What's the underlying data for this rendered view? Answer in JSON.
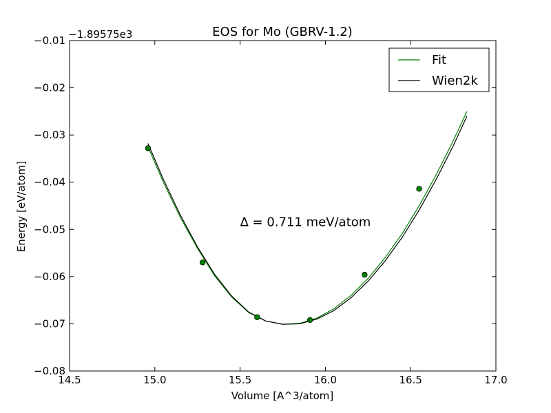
{
  "chart_data": {
    "type": "line",
    "title": "EOS for Mo (GBRV-1.2)",
    "xlabel": "Volume [A^3/atom]",
    "ylabel": "Energy [eV/atom]",
    "offset_text": "−1.89575e3",
    "xlim": [
      14.5,
      17.0
    ],
    "ylim": [
      -0.08,
      -0.01
    ],
    "xticks": [
      14.5,
      15.0,
      15.5,
      16.0,
      16.5,
      17.0
    ],
    "xtick_labels": [
      "14.5",
      "15.0",
      "15.5",
      "16.0",
      "16.5",
      "17.0"
    ],
    "yticks": [
      -0.08,
      -0.07,
      -0.06,
      -0.05,
      -0.04,
      -0.03,
      -0.02,
      -0.01
    ],
    "ytick_labels": [
      "−0.08",
      "−0.07",
      "−0.06",
      "−0.05",
      "−0.04",
      "−0.03",
      "−0.02",
      "−0.01"
    ],
    "grid": false,
    "legend_position": "top-right",
    "annotation": {
      "text": "Δ = 0.711 meV/atom",
      "x": 15.5,
      "y": -0.0493
    },
    "series": [
      {
        "name": "Fit",
        "kind": "line",
        "color": "#008000",
        "x": [
          14.96,
          15.05,
          15.15,
          15.25,
          15.35,
          15.45,
          15.55,
          15.65,
          15.75,
          15.85,
          15.95,
          16.05,
          16.15,
          16.25,
          16.35,
          16.45,
          16.55,
          16.65,
          16.75,
          16.83
        ],
        "y": [
          -0.0325,
          -0.04,
          -0.0475,
          -0.054,
          -0.0598,
          -0.0643,
          -0.0676,
          -0.0694,
          -0.0701,
          -0.0699,
          -0.0688,
          -0.0668,
          -0.064,
          -0.0604,
          -0.056,
          -0.0509,
          -0.045,
          -0.0384,
          -0.0312,
          -0.025
        ]
      },
      {
        "name": "Wien2k",
        "kind": "line",
        "color": "#000000",
        "x": [
          14.96,
          15.05,
          15.15,
          15.25,
          15.35,
          15.45,
          15.55,
          15.65,
          15.75,
          15.85,
          15.95,
          16.05,
          16.15,
          16.25,
          16.35,
          16.45,
          16.55,
          16.65,
          16.75,
          16.83
        ],
        "y": [
          -0.0318,
          -0.0394,
          -0.047,
          -0.0537,
          -0.0595,
          -0.0641,
          -0.0675,
          -0.0694,
          -0.0701,
          -0.07,
          -0.069,
          -0.0672,
          -0.0645,
          -0.061,
          -0.0567,
          -0.0517,
          -0.0459,
          -0.0394,
          -0.0323,
          -0.026
        ]
      },
      {
        "name": "",
        "kind": "points",
        "color": "#008000",
        "x": [
          14.96,
          15.28,
          15.6,
          15.91,
          16.23,
          16.55
        ],
        "y": [
          -0.0328,
          -0.057,
          -0.0686,
          -0.0692,
          -0.0596,
          -0.0414
        ]
      }
    ],
    "legend": [
      {
        "label": "Fit",
        "color": "#008000"
      },
      {
        "label": "Wien2k",
        "color": "#000000"
      }
    ]
  }
}
